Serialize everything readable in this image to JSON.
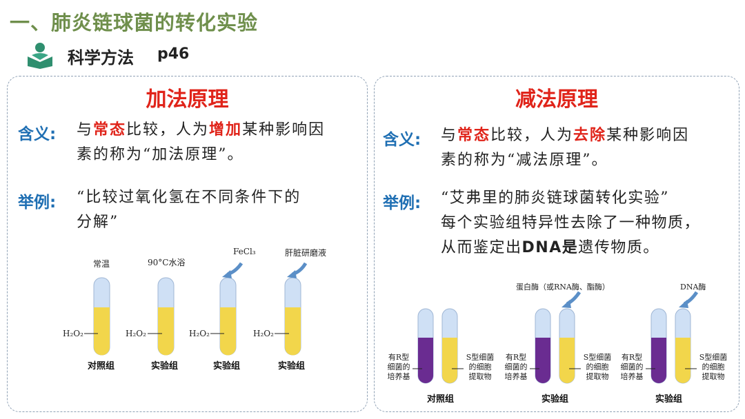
{
  "header": {
    "title": "一、肺炎链球菌的转化实验",
    "method_label": "科学方法",
    "method_page": "p46"
  },
  "left_panel": {
    "heading": "加法原理",
    "meaning_label": "含义:",
    "meaning_pre": "与",
    "meaning_hl1": "常态",
    "meaning_mid": "比较，人为",
    "meaning_hl2": "增加",
    "meaning_post": "某种影响因",
    "meaning_line2": "素的称为“加法原理”。",
    "example_label": "举例:",
    "example_line1": "“比较过氧化氢在不同条件下的",
    "example_line2": "分解”",
    "tubes": [
      {
        "top_label": "常温",
        "content": "H₂O₂",
        "group": "对照组"
      },
      {
        "top_label": "90°C水浴",
        "content": "H₂O₂",
        "group": "实验组"
      },
      {
        "top_label": "FeCl₃",
        "content": "H₂O₂",
        "group": "实验组"
      },
      {
        "top_label": "肝脏研磨液",
        "content": "H₂O₂",
        "group": "实验组"
      }
    ]
  },
  "right_panel": {
    "heading": "减法原理",
    "meaning_label": "含义:",
    "meaning_pre": "与",
    "meaning_hl1": "常态",
    "meaning_mid": "比较，人为",
    "meaning_hl2": "去除",
    "meaning_post": "某种影响因",
    "meaning_line2": "素的称为“减法原理”。",
    "example_label": "举例:",
    "example_line1": "“艾弗里的肺炎链球菌转化实验”",
    "example_line2": "每个实验组特异性去除了一种物质，",
    "example_line3_pre": "从而鉴定出",
    "example_line3_b": "DNA是",
    "example_line3_post": "遗传物质。",
    "sets": [
      {
        "added": "",
        "left_label": "有R型\n细菌的\n培养基",
        "right_label": "S型细菌\n的细胞\n提取物",
        "group": "对照组"
      },
      {
        "added": "蛋白酶（或RNA酶、酯酶）",
        "left_label": "有R型\n细菌的\n培养基",
        "right_label": "S型细菌\n的细胞\n提取物",
        "group": "实验组"
      },
      {
        "added": "DNA酶",
        "left_label": "有R型\n细菌的\n培养基",
        "right_label": "S型细菌\n的细胞\n提取物",
        "group": "实验组"
      }
    ]
  },
  "colors": {
    "title": "#6f8f4c",
    "highlight": "#e0241a",
    "label_blue": "#1f6fb3",
    "liquid_yellow": "#f2d64b",
    "liquid_purple": "#6a2c91",
    "tube_glass": "#cfe0f5"
  }
}
